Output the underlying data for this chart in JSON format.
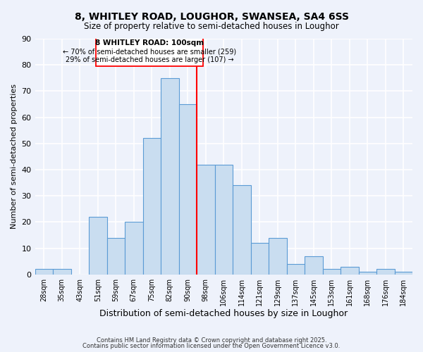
{
  "title": "8, WHITLEY ROAD, LOUGHOR, SWANSEA, SA4 6SS",
  "subtitle": "Size of property relative to semi-detached houses in Loughor",
  "xlabel": "Distribution of semi-detached houses by size in Loughor",
  "ylabel": "Number of semi-detached properties",
  "bar_labels": [
    "28sqm",
    "35sqm",
    "43sqm",
    "51sqm",
    "59sqm",
    "67sqm",
    "75sqm",
    "82sqm",
    "90sqm",
    "98sqm",
    "106sqm",
    "114sqm",
    "121sqm",
    "129sqm",
    "137sqm",
    "145sqm",
    "153sqm",
    "161sqm",
    "168sqm",
    "176sqm",
    "184sqm"
  ],
  "bar_values": [
    2,
    2,
    0,
    22,
    14,
    20,
    52,
    75,
    65,
    42,
    42,
    34,
    12,
    14,
    4,
    7,
    2,
    3,
    1,
    2,
    1
  ],
  "bar_color": "#c9ddf0",
  "bar_edge_color": "#5b9bd5",
  "background_color": "#eef2fb",
  "grid_color": "#ffffff",
  "vline_color": "red",
  "vline_index": 9.0,
  "annotation_title": "8 WHITLEY ROAD: 100sqm",
  "annotation_line1": "← 70% of semi-detached houses are smaller (259)",
  "annotation_line2": "29% of semi-detached houses are larger (107) →",
  "annotation_box_color": "white",
  "annotation_box_edge_color": "red",
  "ylim": [
    0,
    90
  ],
  "yticks": [
    0,
    10,
    20,
    30,
    40,
    50,
    60,
    70,
    80,
    90
  ],
  "footer1": "Contains HM Land Registry data © Crown copyright and database right 2025.",
  "footer2": "Contains public sector information licensed under the Open Government Licence v3.0."
}
